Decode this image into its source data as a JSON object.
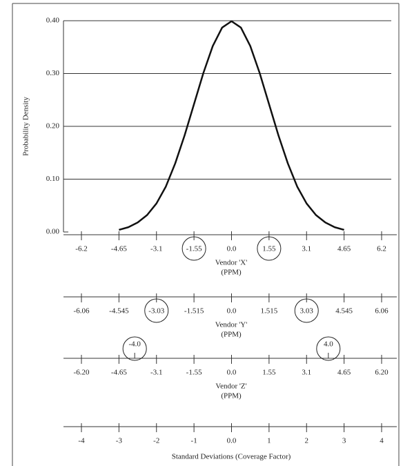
{
  "chart_data": {
    "type": "line",
    "ylabel": "Probability Density",
    "ylim": [
      0,
      0.4
    ],
    "yticks": [
      {
        "value": 0,
        "label": "0.00"
      },
      {
        "value": 0.1,
        "label": "0.10"
      },
      {
        "value": 0.2,
        "label": "0.20"
      },
      {
        "value": 0.3,
        "label": "0.30"
      },
      {
        "value": 0.4,
        "label": "0.40"
      }
    ],
    "grid": true,
    "color": "#111111",
    "x": [
      -3,
      -2.75,
      -2.5,
      -2.25,
      -2,
      -1.75,
      -1.5,
      -1.25,
      -1,
      -0.75,
      -0.5,
      -0.25,
      0,
      0.25,
      0.5,
      0.75,
      1,
      1.25,
      1.5,
      1.75,
      2,
      2.25,
      2.5,
      2.75,
      3
    ],
    "values": [
      0.004,
      0.009,
      0.018,
      0.032,
      0.054,
      0.086,
      0.13,
      0.183,
      0.242,
      0.301,
      0.352,
      0.387,
      0.399,
      0.387,
      0.352,
      0.301,
      0.242,
      0.183,
      0.13,
      0.086,
      0.054,
      0.032,
      0.018,
      0.009,
      0.004
    ],
    "x_axes": [
      {
        "label": "Vendor 'X'",
        "unit": "(PPM)",
        "xlim": [
          -6.2,
          6.2
        ],
        "xticks": [
          -6.2,
          -4.65,
          -3.1,
          -1.55,
          {
            "value": 0,
            "label": "0.0"
          },
          1.55,
          3.1,
          4.65,
          6.2
        ],
        "circled": [
          -1.55,
          1.55
        ]
      },
      {
        "label": "Vendor 'Y'",
        "unit": "(PPM)",
        "xlim": [
          -6.06,
          6.06
        ],
        "xticks": [
          -6.06,
          -4.545,
          -3.03,
          -1.515,
          {
            "value": 0,
            "label": "0.0"
          },
          1.515,
          3.03,
          4.545,
          6.06
        ],
        "circled": [
          -3.03,
          3.03
        ]
      },
      {
        "label": "Vendor 'Z'",
        "unit": "(PPM)",
        "xlim": [
          -6.2,
          6.2
        ],
        "xticks": [
          {
            "value": -6.2,
            "label": "-6.20"
          },
          -4.65,
          -3.1,
          -1.55,
          {
            "value": 0,
            "label": "0.0"
          },
          1.55,
          3.1,
          4.65,
          {
            "value": 6.2,
            "label": "6.20"
          }
        ],
        "annotations": [
          {
            "text": "-4.0",
            "x": -4
          },
          {
            "text": "4.0",
            "x": 4
          }
        ]
      },
      {
        "label": "Standard Deviations (Coverage Factor)",
        "xlim": [
          -4,
          4
        ],
        "xticks": [
          -4,
          -3,
          -2,
          -1,
          {
            "value": 0,
            "label": "0.0"
          },
          1,
          2,
          3,
          4
        ]
      }
    ]
  }
}
